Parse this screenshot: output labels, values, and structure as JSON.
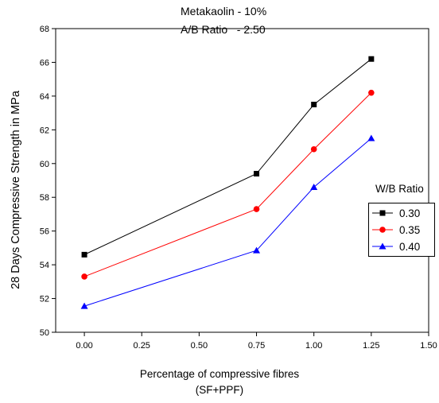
{
  "chart_data": {
    "type": "line",
    "title_lines": [
      "Metakaolin - 10%",
      "A/B Ratio   - 2.50"
    ],
    "xlabel_lines": [
      "Percentage of compressive fibres",
      "(SF+PPF)"
    ],
    "ylabel": "28 Days Compressive Strength in MPa",
    "xlim": [
      -0.125,
      1.5
    ],
    "ylim": [
      50,
      68
    ],
    "xticks": [
      "0.00",
      "0.25",
      "0.50",
      "0.75",
      "1.00",
      "1.25",
      "1.50"
    ],
    "yticks": [
      "50",
      "52",
      "54",
      "56",
      "58",
      "60",
      "62",
      "64",
      "66",
      "68"
    ],
    "grid": false,
    "legend_title": "W/B Ratio",
    "legend_position": "right",
    "x": [
      0.0,
      0.75,
      1.0,
      1.25
    ],
    "series": [
      {
        "name": "0.30",
        "color": "#000000",
        "marker": "square",
        "values": [
          54.6,
          59.4,
          63.5,
          66.2
        ]
      },
      {
        "name": "0.35",
        "color": "#ff0000",
        "marker": "circle",
        "values": [
          53.3,
          57.3,
          60.85,
          64.2
        ]
      },
      {
        "name": "0.40",
        "color": "#0000ff",
        "marker": "triangle",
        "values": [
          51.55,
          54.85,
          58.6,
          61.5
        ]
      }
    ]
  }
}
